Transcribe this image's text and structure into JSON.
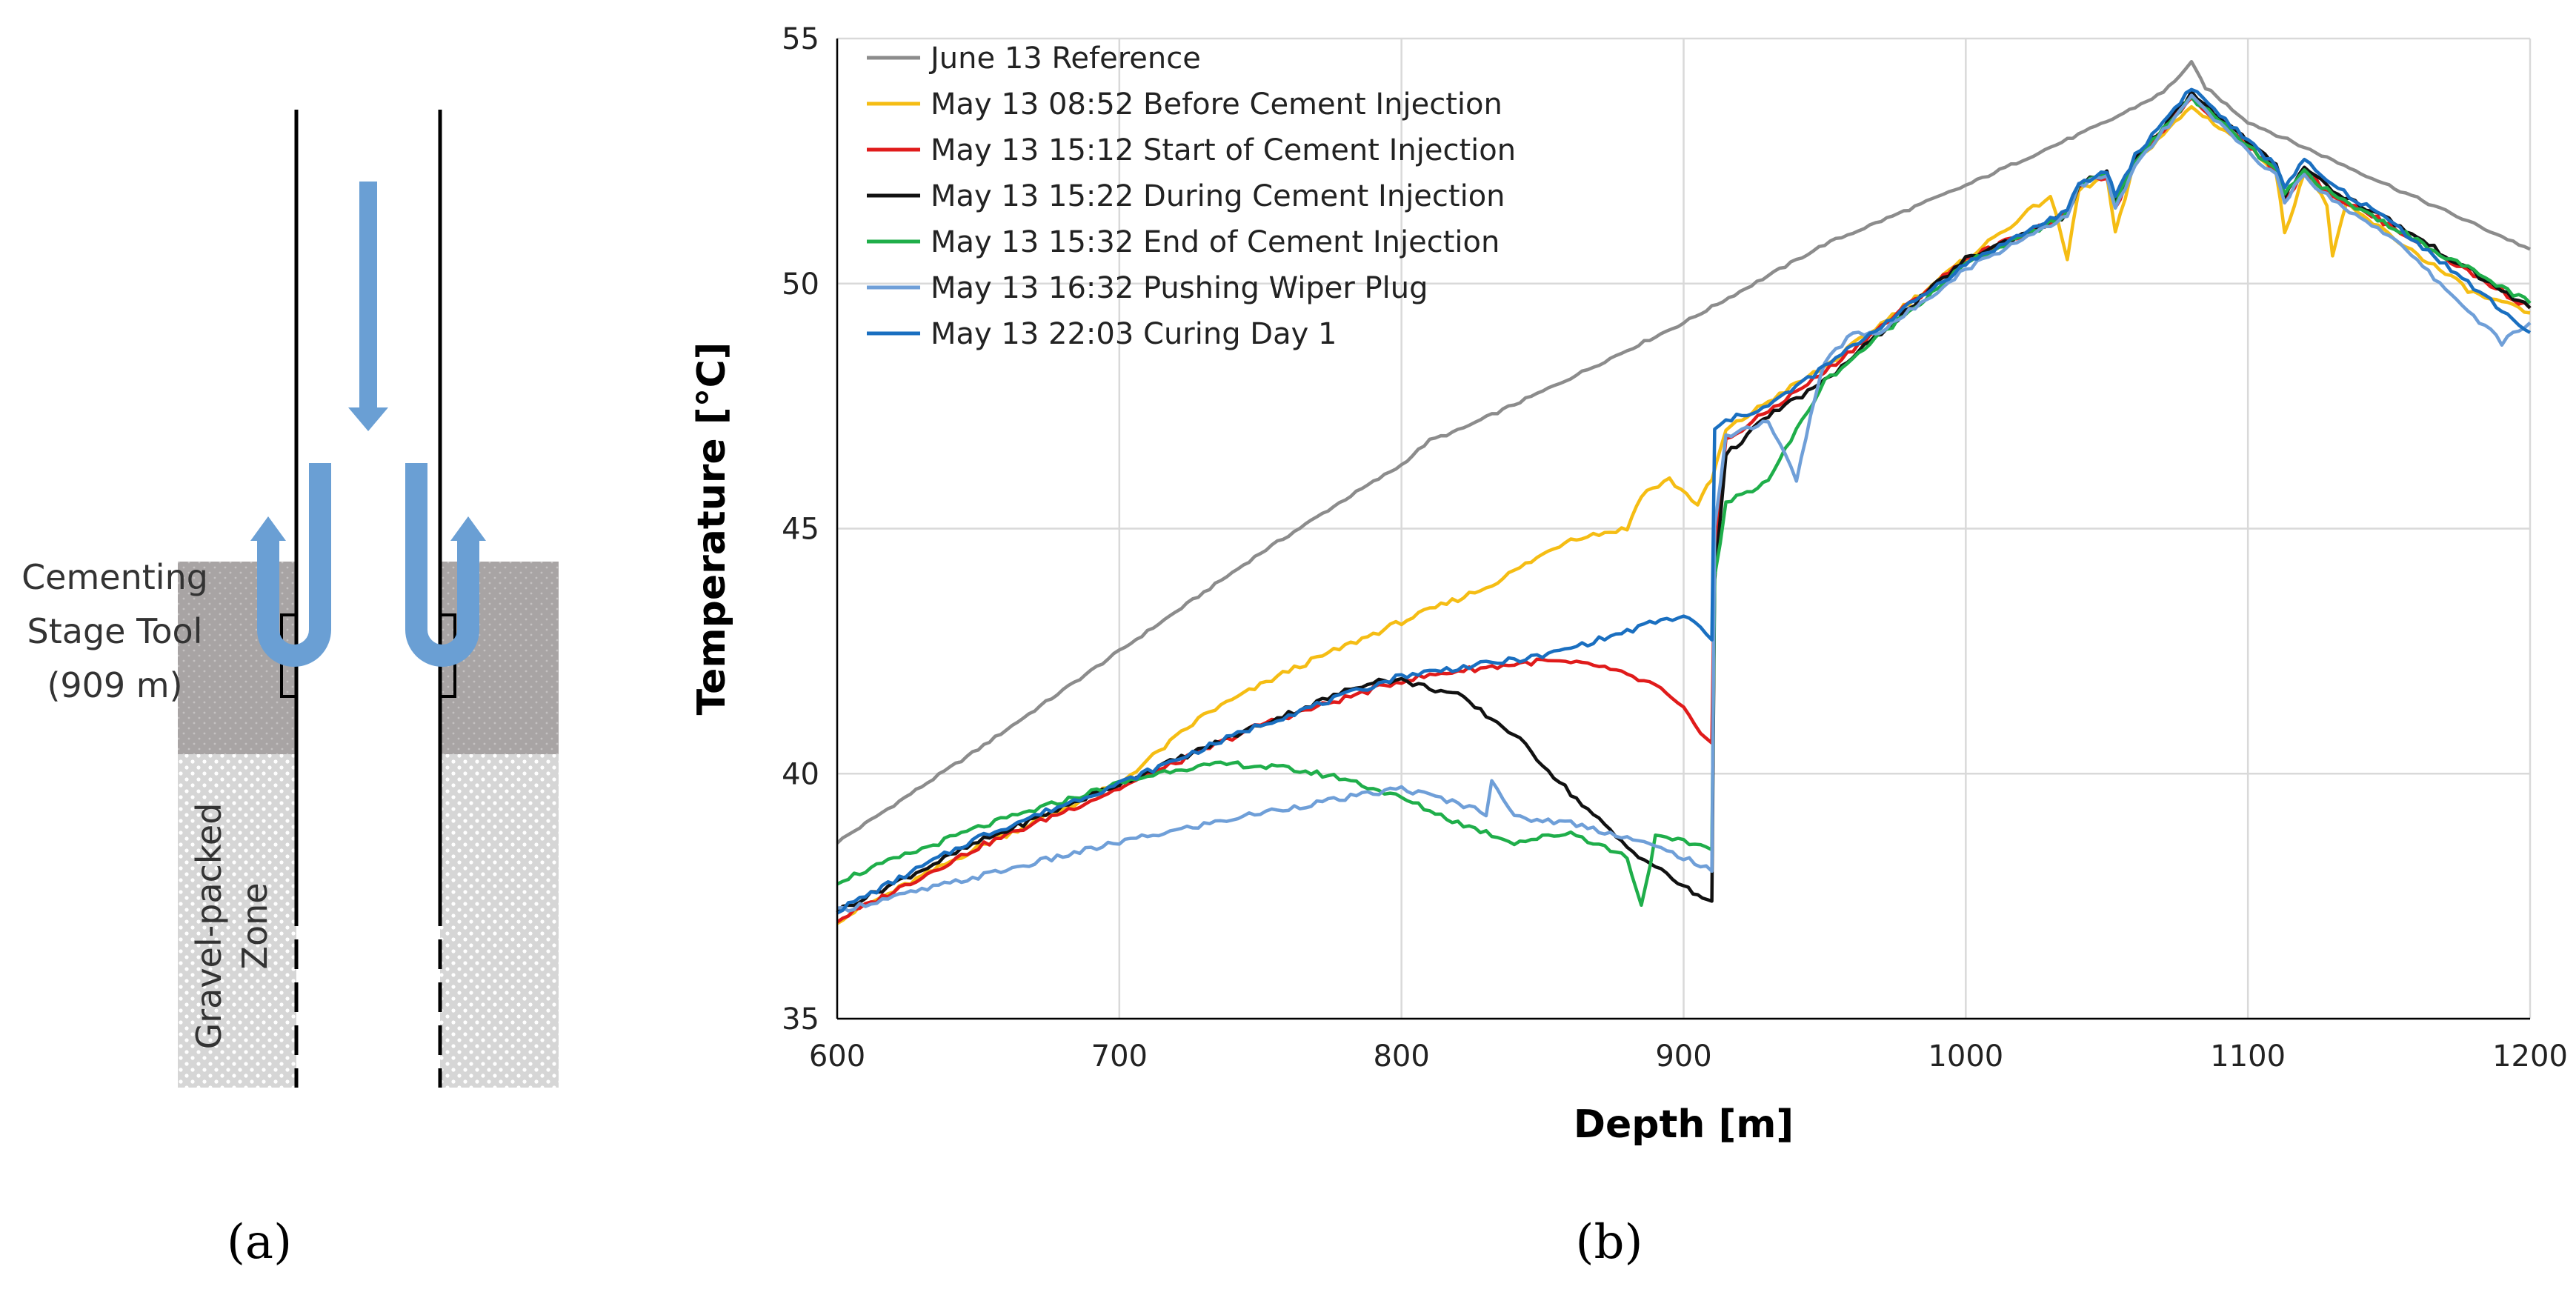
{
  "panel_a": {
    "stage_tool_label_line1": "Cementing",
    "stage_tool_label_line2": "Stage Tool",
    "stage_tool_label_line3": "(909 m)",
    "gravel_label_line1": "Gravel-packed",
    "gravel_label_line2": "Zone",
    "caption": "(a)"
  },
  "panel_b": {
    "caption": "(b)"
  },
  "colors": {
    "reference": "#8c8c8c",
    "before": "#f5bd14",
    "start": "#e01b1b",
    "during": "#111111",
    "end": "#1fae4a",
    "pushing": "#6f9fd8",
    "curing": "#1a6fc0",
    "arrow": "#6a9fd4",
    "cement_zone": "#a8a4a4",
    "gravel_zone": "#d6d6d6"
  },
  "chart_data": {
    "type": "line",
    "title": "",
    "xlabel": "Depth [m]",
    "ylabel": "Temperature [°C]",
    "xlim": [
      600,
      1200
    ],
    "ylim": [
      35,
      55
    ],
    "xticks": [
      600,
      700,
      800,
      900,
      1000,
      1100,
      1200
    ],
    "yticks": [
      35,
      40,
      45,
      50,
      55
    ],
    "grid": true,
    "legend_position": "top-left",
    "series": [
      {
        "name": "June 13 Reference",
        "color": "#8c8c8c",
        "x": [
          600,
          650,
          700,
          750,
          780,
          800,
          810,
          820,
          850,
          900,
          950,
          1000,
          1050,
          1070,
          1080,
          1085,
          1100,
          1150,
          1200
        ],
        "y": [
          38.6,
          40.5,
          42.5,
          44.5,
          45.6,
          46.3,
          46.8,
          47.0,
          47.8,
          49.2,
          50.8,
          52.0,
          53.3,
          53.9,
          54.5,
          54.0,
          53.3,
          52.0,
          50.7
        ]
      },
      {
        "name": "May 13 08:52 Before Cement Injection",
        "color": "#f5bd14",
        "x": [
          600,
          650,
          700,
          730,
          760,
          800,
          830,
          860,
          880,
          885,
          895,
          905,
          910,
          915,
          930,
          950,
          1000,
          1030,
          1036,
          1040,
          1050,
          1053,
          1060,
          1080,
          1100,
          1110,
          1113,
          1120,
          1128,
          1130,
          1135,
          1150,
          1180,
          1200
        ],
        "y": [
          37.0,
          38.5,
          39.8,
          41.2,
          42.1,
          43.1,
          43.8,
          44.8,
          45.0,
          45.7,
          46.0,
          45.5,
          46.0,
          47.0,
          47.6,
          48.3,
          50.5,
          51.8,
          50.5,
          51.9,
          52.2,
          51.0,
          52.5,
          53.6,
          52.8,
          52.3,
          51.0,
          52.3,
          51.6,
          50.6,
          51.6,
          51.0,
          49.8,
          49.4
        ]
      },
      {
        "name": "May 13 15:12 Start of Cement Injection",
        "color": "#e01b1b",
        "x": [
          600,
          650,
          700,
          750,
          800,
          820,
          850,
          870,
          890,
          900,
          910,
          911,
          915,
          930,
          950,
          1000,
          1036,
          1040,
          1050,
          1053,
          1060,
          1080,
          1100,
          1110,
          1113,
          1120,
          1130,
          1150,
          1200
        ],
        "y": [
          37.0,
          38.5,
          39.7,
          41.0,
          41.9,
          42.1,
          42.3,
          42.2,
          41.8,
          41.3,
          40.6,
          44.5,
          46.8,
          47.4,
          48.2,
          50.5,
          51.4,
          52.0,
          52.2,
          51.5,
          52.5,
          53.8,
          52.8,
          52.3,
          51.7,
          52.3,
          51.8,
          51.2,
          49.5
        ]
      },
      {
        "name": "May 13 15:22 During Cement Injection",
        "color": "#111111",
        "x": [
          600,
          650,
          700,
          750,
          790,
          800,
          820,
          840,
          860,
          880,
          900,
          905,
          910,
          911,
          915,
          930,
          950,
          1000,
          1036,
          1040,
          1050,
          1053,
          1060,
          1080,
          1100,
          1110,
          1113,
          1120,
          1130,
          1150,
          1200
        ],
        "y": [
          37.2,
          38.6,
          39.8,
          41.0,
          41.9,
          41.9,
          41.6,
          40.8,
          39.6,
          38.5,
          37.7,
          37.5,
          37.4,
          44.0,
          46.5,
          47.3,
          48.0,
          50.5,
          51.4,
          52.0,
          52.3,
          51.6,
          52.5,
          53.9,
          52.9,
          52.4,
          51.8,
          52.4,
          51.9,
          51.3,
          49.5
        ]
      },
      {
        "name": "May 13 15:32 End of Cement Injection",
        "color": "#1fae4a",
        "x": [
          600,
          650,
          700,
          720,
          740,
          760,
          780,
          800,
          820,
          840,
          860,
          880,
          885,
          890,
          900,
          910,
          911,
          915,
          930,
          950,
          1000,
          1036,
          1040,
          1050,
          1053,
          1060,
          1080,
          1100,
          1110,
          1113,
          1120,
          1130,
          1150,
          1200
        ],
        "y": [
          37.8,
          38.9,
          39.8,
          40.1,
          40.2,
          40.1,
          39.9,
          39.5,
          39.0,
          38.6,
          38.8,
          38.3,
          37.3,
          38.7,
          38.6,
          38.5,
          44.0,
          45.5,
          46.0,
          48.0,
          50.4,
          51.4,
          52.0,
          52.3,
          51.6,
          52.5,
          53.8,
          52.8,
          52.3,
          51.8,
          52.3,
          51.8,
          51.2,
          49.6
        ]
      },
      {
        "name": "May 13 16:32 Pushing Wiper Plug",
        "color": "#6f9fd8",
        "x": [
          600,
          650,
          700,
          750,
          790,
          800,
          820,
          830,
          832,
          840,
          860,
          880,
          900,
          910,
          911,
          915,
          930,
          940,
          945,
          950,
          960,
          970,
          1000,
          1036,
          1040,
          1050,
          1053,
          1060,
          1080,
          1100,
          1110,
          1113,
          1120,
          1130,
          1150,
          1190,
          1200
        ],
        "y": [
          37.2,
          37.9,
          38.6,
          39.2,
          39.6,
          39.7,
          39.4,
          39.2,
          39.9,
          39.1,
          39.0,
          38.7,
          38.3,
          38.0,
          45.0,
          46.9,
          47.2,
          46.0,
          47.3,
          48.4,
          49.0,
          49.0,
          50.3,
          51.4,
          52.0,
          52.2,
          51.5,
          52.4,
          53.8,
          52.7,
          52.2,
          51.7,
          52.2,
          51.7,
          51.0,
          48.8,
          49.2
        ]
      },
      {
        "name": "May 13 22:03 Curing Day 1",
        "color": "#1a6fc0",
        "x": [
          600,
          650,
          700,
          750,
          800,
          850,
          880,
          890,
          900,
          906,
          910,
          911,
          915,
          930,
          950,
          1000,
          1036,
          1040,
          1050,
          1053,
          1060,
          1080,
          1100,
          1110,
          1113,
          1120,
          1130,
          1150,
          1200
        ],
        "y": [
          37.2,
          38.7,
          39.8,
          41.0,
          42.0,
          42.4,
          42.9,
          43.1,
          43.2,
          43.0,
          42.7,
          47.0,
          47.2,
          47.5,
          48.3,
          50.4,
          51.5,
          52.0,
          52.3,
          51.8,
          52.6,
          54.0,
          52.9,
          52.4,
          52.0,
          52.5,
          52.0,
          51.3,
          49.0
        ]
      }
    ]
  }
}
